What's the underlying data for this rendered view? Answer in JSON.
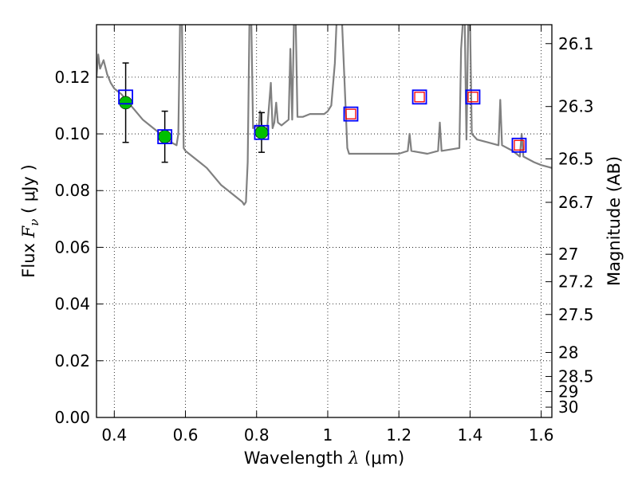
{
  "chart_data": {
    "type": "scatter",
    "xlabel": "Wavelength",
    "xlabel_symbol": "λ",
    "xlabel_unit": "(μm)",
    "ylabel": "Flux",
    "ylabel_symbol": "F",
    "ylabel_sub": "ν",
    "ylabel_unit": "( μJy )",
    "y2label": "Magnitude (AB)",
    "xlim": [
      0.35,
      1.63
    ],
    "ylim": [
      0.0,
      0.1385
    ],
    "grid": true,
    "x_ticks": [
      0.4,
      0.6,
      0.8,
      1.0,
      1.2,
      1.4,
      1.6
    ],
    "x_tick_labels": [
      "0.4",
      "0.6",
      "0.8",
      "1",
      "1.2",
      "1.4",
      "1.6"
    ],
    "y_ticks": [
      0.0,
      0.02,
      0.04,
      0.06,
      0.08,
      0.1,
      0.12
    ],
    "y_tick_labels": [
      "0.00",
      "0.02",
      "0.04",
      "0.06",
      "0.08",
      "0.10",
      "0.12"
    ],
    "mag_ticks": [
      26.1,
      26.3,
      26.5,
      26.7,
      27,
      27.2,
      27.5,
      28,
      28.5,
      29,
      30
    ],
    "mag_tick_labels": [
      "26.1",
      "26.3",
      "26.5",
      "26.7",
      "27",
      "27.2",
      "27.5",
      "28",
      "28.5",
      "29",
      "30"
    ],
    "colors": {
      "spectrum": "#808080",
      "observed_fill": "#00c000",
      "model_box": "#0000ff",
      "upper_box": "#ff0000",
      "errorbar": "#000000"
    },
    "spectrum": [
      [
        0.35,
        0.12
      ],
      [
        0.355,
        0.128
      ],
      [
        0.36,
        0.123
      ],
      [
        0.37,
        0.126
      ],
      [
        0.38,
        0.121
      ],
      [
        0.39,
        0.118
      ],
      [
        0.4,
        0.116
      ],
      [
        0.42,
        0.114
      ],
      [
        0.44,
        0.111
      ],
      [
        0.46,
        0.108
      ],
      [
        0.48,
        0.105
      ],
      [
        0.5,
        0.103
      ],
      [
        0.52,
        0.101
      ],
      [
        0.54,
        0.099
      ],
      [
        0.56,
        0.097
      ],
      [
        0.575,
        0.096
      ],
      [
        0.58,
        0.1
      ],
      [
        0.585,
        0.14
      ],
      [
        0.59,
        0.14
      ],
      [
        0.595,
        0.095
      ],
      [
        0.6,
        0.094
      ],
      [
        0.62,
        0.092
      ],
      [
        0.64,
        0.09
      ],
      [
        0.66,
        0.088
      ],
      [
        0.68,
        0.085
      ],
      [
        0.7,
        0.082
      ],
      [
        0.72,
        0.08
      ],
      [
        0.74,
        0.078
      ],
      [
        0.76,
        0.076
      ],
      [
        0.765,
        0.075
      ],
      [
        0.77,
        0.076
      ],
      [
        0.775,
        0.09
      ],
      [
        0.78,
        0.14
      ],
      [
        0.785,
        0.14
      ],
      [
        0.79,
        0.102
      ],
      [
        0.8,
        0.103
      ],
      [
        0.805,
        0.101
      ],
      [
        0.81,
        0.108
      ],
      [
        0.815,
        0.102
      ],
      [
        0.82,
        0.1
      ],
      [
        0.83,
        0.102
      ],
      [
        0.84,
        0.118
      ],
      [
        0.845,
        0.102
      ],
      [
        0.85,
        0.104
      ],
      [
        0.855,
        0.111
      ],
      [
        0.86,
        0.104
      ],
      [
        0.87,
        0.103
      ],
      [
        0.88,
        0.104
      ],
      [
        0.89,
        0.105
      ],
      [
        0.895,
        0.13
      ],
      [
        0.9,
        0.105
      ],
      [
        0.905,
        0.14
      ],
      [
        0.91,
        0.14
      ],
      [
        0.915,
        0.106
      ],
      [
        0.93,
        0.106
      ],
      [
        0.95,
        0.107
      ],
      [
        0.97,
        0.107
      ],
      [
        0.99,
        0.107
      ],
      [
        1.0,
        0.108
      ],
      [
        1.01,
        0.11
      ],
      [
        1.02,
        0.125
      ],
      [
        1.025,
        0.14
      ],
      [
        1.04,
        0.14
      ],
      [
        1.055,
        0.095
      ],
      [
        1.06,
        0.093
      ],
      [
        1.1,
        0.093
      ],
      [
        1.15,
        0.093
      ],
      [
        1.2,
        0.093
      ],
      [
        1.225,
        0.094
      ],
      [
        1.23,
        0.1
      ],
      [
        1.235,
        0.094
      ],
      [
        1.28,
        0.093
      ],
      [
        1.31,
        0.094
      ],
      [
        1.315,
        0.104
      ],
      [
        1.32,
        0.094
      ],
      [
        1.37,
        0.095
      ],
      [
        1.375,
        0.13
      ],
      [
        1.38,
        0.14
      ],
      [
        1.385,
        0.14
      ],
      [
        1.39,
        0.098
      ],
      [
        1.395,
        0.14
      ],
      [
        1.4,
        0.14
      ],
      [
        1.405,
        0.1
      ],
      [
        1.42,
        0.098
      ],
      [
        1.45,
        0.097
      ],
      [
        1.48,
        0.096
      ],
      [
        1.485,
        0.112
      ],
      [
        1.49,
        0.096
      ],
      [
        1.52,
        0.094
      ],
      [
        1.54,
        0.092
      ],
      [
        1.545,
        0.1
      ],
      [
        1.55,
        0.092
      ],
      [
        1.58,
        0.09
      ],
      [
        1.6,
        0.089
      ],
      [
        1.63,
        0.088
      ]
    ],
    "observed": [
      {
        "x": 0.432,
        "y": 0.111,
        "yerr": 0.014
      },
      {
        "x": 0.542,
        "y": 0.099,
        "yerr": 0.009
      },
      {
        "x": 0.814,
        "y": 0.1005,
        "yerr": 0.007
      }
    ],
    "model_boxes": [
      {
        "x": 0.432,
        "y": 0.113
      },
      {
        "x": 0.542,
        "y": 0.099
      },
      {
        "x": 0.814,
        "y": 0.1005
      }
    ],
    "model_boxes_upper": [
      {
        "x": 1.065,
        "y": 0.107
      },
      {
        "x": 1.258,
        "y": 0.113
      },
      {
        "x": 1.408,
        "y": 0.113
      },
      {
        "x": 1.538,
        "y": 0.096
      }
    ]
  }
}
